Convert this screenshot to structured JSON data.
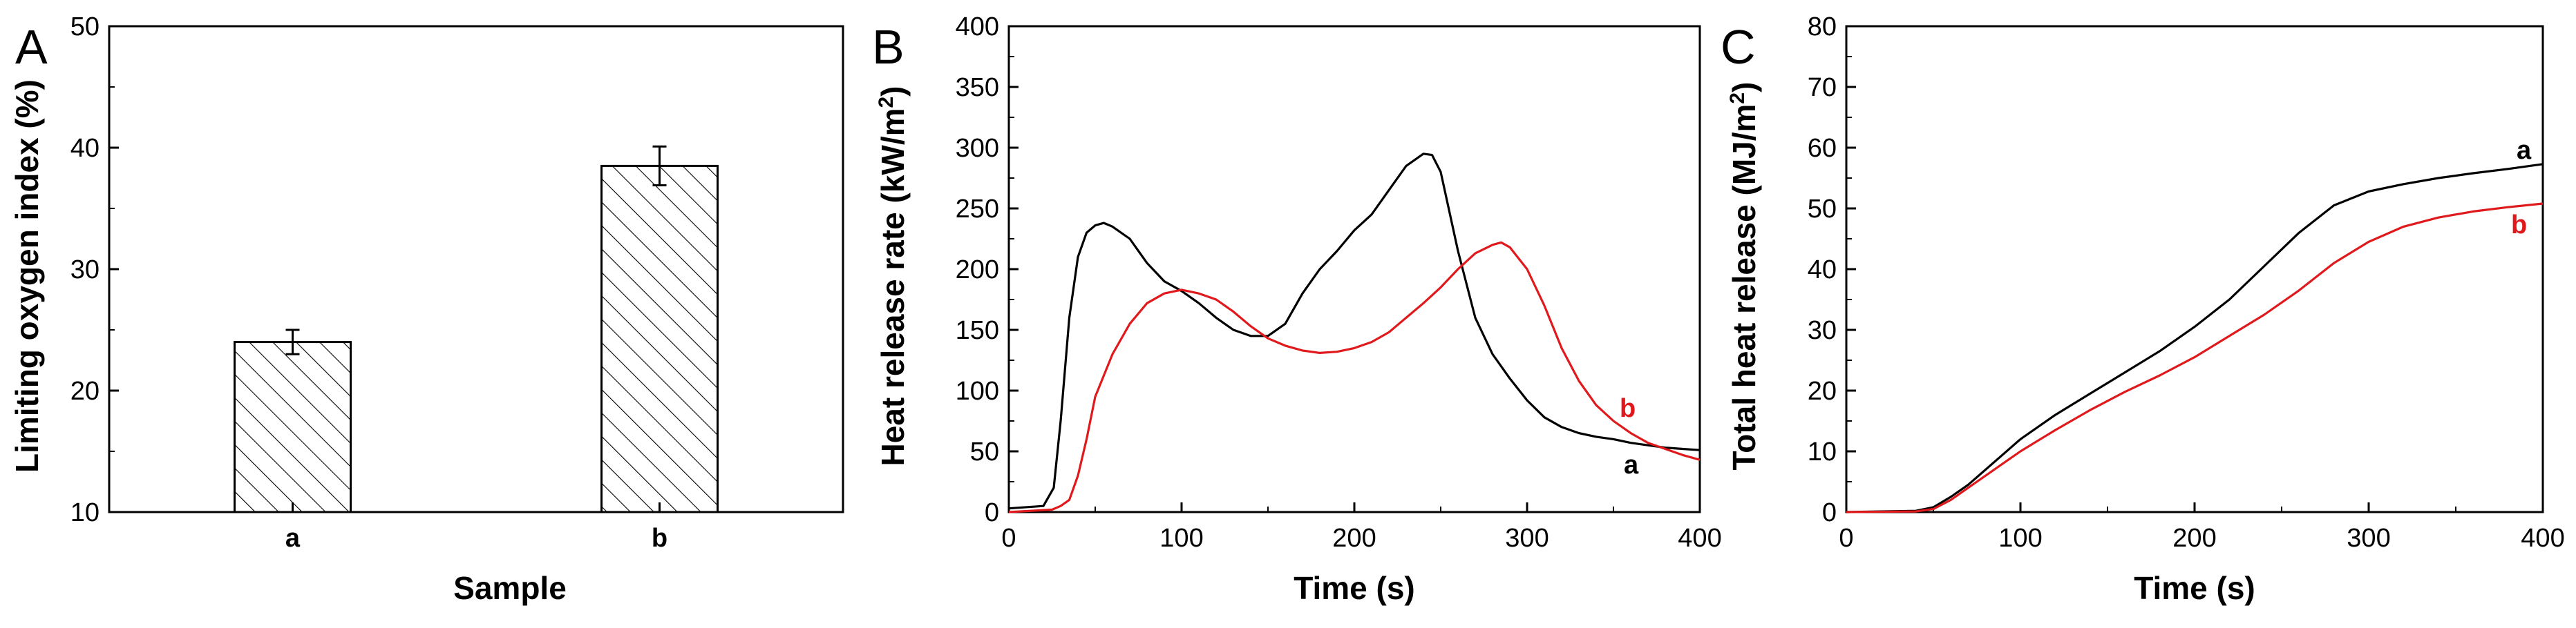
{
  "colors": {
    "axis": "#000000",
    "series_a": "#000000",
    "series_b": "#e0191c",
    "bar_fill": "#ffffff",
    "hatch": "#000000"
  },
  "chart_data": [
    {
      "panel": "A",
      "type": "bar",
      "categories": [
        "a",
        "b"
      ],
      "values": [
        24.0,
        38.5
      ],
      "error": [
        1.0,
        1.6
      ],
      "bar_pattern": "diagonal hatch",
      "xlabel": "Sample",
      "ylabel": "Limiting oxygen index (%)",
      "ylim": [
        10,
        50
      ],
      "yticks": [
        "10",
        "20",
        "30",
        "40",
        "50"
      ],
      "grid": false
    },
    {
      "panel": "B",
      "type": "line",
      "xlabel": "Time (s)",
      "ylabel_prefix": "Heat release rate (kW/m",
      "ylabel_sup": "2",
      "ylabel_suffix": ")",
      "xlim": [
        0,
        400
      ],
      "ylim": [
        0,
        400
      ],
      "xticks": [
        "0",
        "100",
        "200",
        "300",
        "400"
      ],
      "yticks": [
        "0",
        "50",
        "100",
        "150",
        "200",
        "250",
        "300",
        "350",
        "400"
      ],
      "grid": false,
      "series": [
        {
          "name": "a",
          "color": "#000000",
          "x": [
            0,
            20,
            26,
            30,
            35,
            40,
            45,
            50,
            55,
            60,
            70,
            80,
            90,
            100,
            110,
            120,
            130,
            140,
            150,
            160,
            170,
            180,
            190,
            200,
            210,
            220,
            230,
            240,
            245,
            250,
            260,
            270,
            280,
            290,
            300,
            310,
            320,
            330,
            340,
            350,
            360,
            370,
            380,
            390,
            400
          ],
          "y": [
            3,
            5,
            20,
            75,
            160,
            210,
            230,
            236,
            238,
            235,
            225,
            205,
            190,
            182,
            172,
            160,
            150,
            145,
            145,
            155,
            180,
            200,
            215,
            232,
            245,
            265,
            285,
            295,
            294,
            280,
            215,
            160,
            130,
            110,
            92,
            78,
            70,
            65,
            62,
            60,
            57,
            55,
            53,
            52,
            51
          ]
        },
        {
          "name": "b",
          "color": "#e0191c",
          "x": [
            0,
            25,
            30,
            35,
            40,
            45,
            50,
            60,
            70,
            80,
            90,
            100,
            110,
            120,
            130,
            140,
            150,
            160,
            170,
            180,
            190,
            200,
            210,
            220,
            230,
            240,
            250,
            260,
            270,
            280,
            285,
            290,
            300,
            310,
            320,
            330,
            340,
            350,
            360,
            370,
            380,
            390,
            400
          ],
          "y": [
            0,
            2,
            5,
            10,
            30,
            60,
            95,
            130,
            155,
            172,
            180,
            183,
            180,
            175,
            165,
            153,
            143,
            137,
            133,
            131,
            132,
            135,
            140,
            148,
            160,
            172,
            185,
            200,
            213,
            220,
            222,
            218,
            200,
            170,
            135,
            108,
            88,
            75,
            65,
            57,
            52,
            47,
            43
          ]
        }
      ],
      "annotations": [
        "a",
        "b"
      ]
    },
    {
      "panel": "C",
      "type": "line",
      "xlabel": "Time (s)",
      "ylabel_prefix": "Total heat release (MJ/m",
      "ylabel_sup": "2",
      "ylabel_suffix": ")",
      "xlim": [
        0,
        400
      ],
      "ylim": [
        0,
        80
      ],
      "xticks": [
        "0",
        "100",
        "200",
        "300",
        "400"
      ],
      "yticks": [
        "0",
        "10",
        "20",
        "30",
        "40",
        "50",
        "60",
        "70",
        "80"
      ],
      "grid": false,
      "series": [
        {
          "name": "a",
          "color": "#000000",
          "x": [
            0,
            40,
            50,
            60,
            70,
            80,
            90,
            100,
            120,
            140,
            160,
            180,
            200,
            220,
            240,
            260,
            280,
            300,
            320,
            340,
            360,
            380,
            400
          ],
          "y": [
            0,
            0.2,
            0.8,
            2.5,
            4.5,
            7,
            9.5,
            12,
            16,
            19.5,
            23,
            26.5,
            30.5,
            35,
            40.5,
            46,
            50.5,
            52.8,
            54,
            55,
            55.8,
            56.5,
            57.3
          ]
        },
        {
          "name": "b",
          "color": "#e0191c",
          "x": [
            0,
            40,
            50,
            60,
            70,
            80,
            90,
            100,
            120,
            140,
            160,
            180,
            200,
            220,
            240,
            260,
            280,
            300,
            320,
            340,
            360,
            380,
            400
          ],
          "y": [
            0,
            0.1,
            0.5,
            2,
            4,
            6,
            8,
            10,
            13.5,
            16.8,
            19.8,
            22.5,
            25.5,
            29,
            32.5,
            36.5,
            41,
            44.5,
            47,
            48.5,
            49.5,
            50.2,
            50.8
          ]
        }
      ],
      "annotations": [
        "a",
        "b"
      ]
    }
  ],
  "panels": {
    "A": {
      "letter": "A",
      "xlabel": "Sample",
      "ylabel": "Limiting oxygen index (%)",
      "cat_a": "a",
      "cat_b": "b"
    },
    "B": {
      "letter": "B",
      "xlabel": "Time (s)",
      "ylabel_prefix": "Heat release rate (kW/m",
      "ylabel_sup": "2",
      "ylabel_suffix": ")",
      "label_a": "a",
      "label_b": "b"
    },
    "C": {
      "letter": "C",
      "xlabel": "Time (s)",
      "ylabel_prefix": "Total heat release (MJ/m",
      "ylabel_sup": "2",
      "ylabel_suffix": ")",
      "label_a": "a",
      "label_b": "b"
    }
  }
}
